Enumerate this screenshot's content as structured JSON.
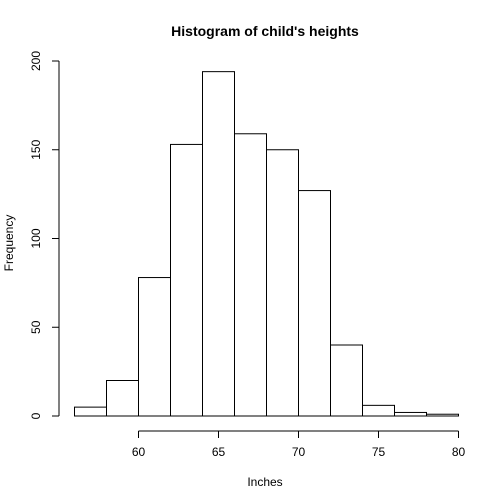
{
  "chart_data": {
    "type": "bar",
    "title": "Histogram of child's heights",
    "xlabel": "Inches",
    "ylabel": "Frequency",
    "bin_edges": [
      56,
      58,
      60,
      62,
      64,
      66,
      68,
      70,
      72,
      74,
      76,
      78,
      80
    ],
    "values": [
      5,
      20,
      78,
      153,
      194,
      159,
      150,
      127,
      40,
      6,
      2,
      1
    ],
    "xlim": [
      56,
      80
    ],
    "ylim": [
      0,
      200
    ],
    "x_ticks": [
      60,
      65,
      70,
      75,
      80
    ],
    "y_ticks": [
      0,
      50,
      100,
      150,
      200
    ],
    "grid": false,
    "bar_fill": "#ffffff",
    "bar_stroke": "#000000"
  }
}
